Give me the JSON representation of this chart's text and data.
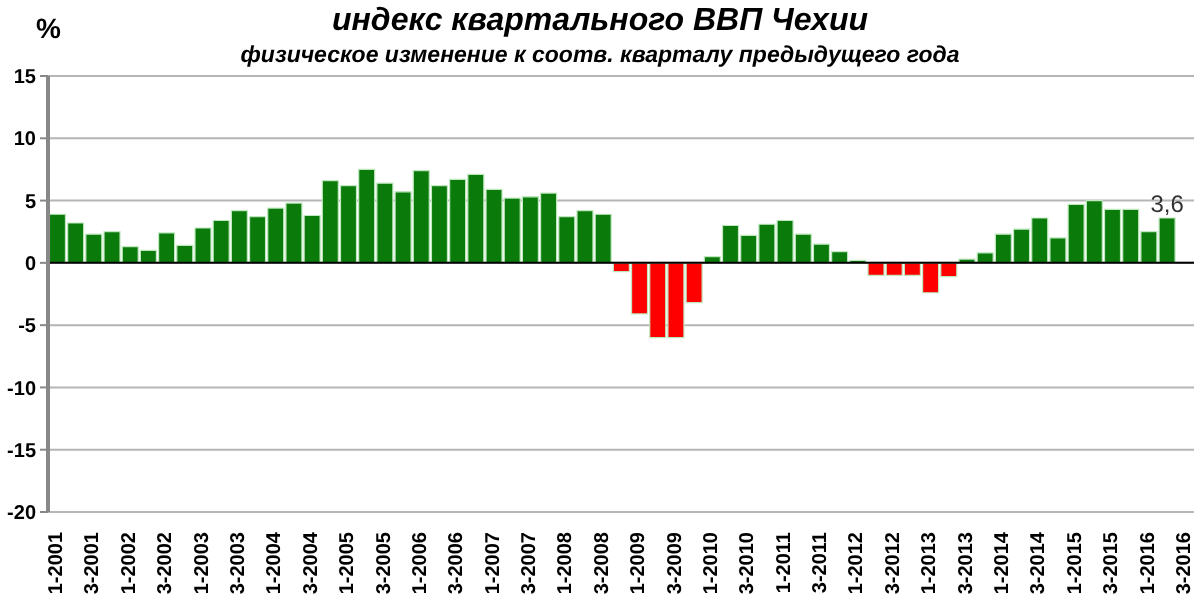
{
  "chart_data": {
    "type": "bar",
    "title": "индекс квартального ВВП Чехии",
    "subtitle": "физическое изменение к соотв. кварталу  предыдущего года",
    "ylabel": "%",
    "categories": [
      "1-2001",
      null,
      "3-2001",
      null,
      "1-2002",
      null,
      "3-2002",
      null,
      "1-2003",
      null,
      "3-2003",
      null,
      "1-2004",
      null,
      "3-2004",
      null,
      "1-2005",
      null,
      "3-2005",
      null,
      "1-2006",
      null,
      "3-2006",
      null,
      "1-2007",
      null,
      "3-2007",
      null,
      "1-2008",
      null,
      "3-2008",
      null,
      "1-2009",
      null,
      "3-2009",
      null,
      "1-2010",
      null,
      "3-2010",
      null,
      "1-2011",
      null,
      "3-2011",
      null,
      "1-2012",
      null,
      "3-2012",
      null,
      "1-2013",
      null,
      "3-2013",
      null,
      "1-2014",
      null,
      "3-2014",
      null,
      "1-2015",
      null,
      "3-2015",
      null,
      "1-2016",
      null,
      "3-2016"
    ],
    "values": [
      3.9,
      3.2,
      2.3,
      2.5,
      1.3,
      1.0,
      2.4,
      1.4,
      2.8,
      3.4,
      4.2,
      3.7,
      4.4,
      4.8,
      3.8,
      6.6,
      6.2,
      7.5,
      6.4,
      5.7,
      7.4,
      6.2,
      6.7,
      7.1,
      5.9,
      5.2,
      5.3,
      5.6,
      3.7,
      4.2,
      3.9,
      -0.7,
      -4.1,
      -6.0,
      -6.0,
      -3.2,
      0.5,
      3.0,
      2.2,
      3.1,
      3.4,
      2.3,
      1.5,
      0.9,
      0.2,
      -1.0,
      -1.0,
      -1.0,
      -2.4,
      -1.1,
      0.3,
      0.8,
      2.3,
      2.7,
      3.6,
      2.0,
      4.7,
      5.0,
      4.3,
      4.3,
      2.5,
      3.6,
      null
    ],
    "colors": [
      "#0a7a0a",
      "#0a7a0a",
      "#0a7a0a",
      "#0a7a0a",
      "#0a7a0a",
      "#0a7a0a",
      "#0a7a0a",
      "#0a7a0a",
      "#0a7a0a",
      "#0a7a0a",
      "#0a7a0a",
      "#0a7a0a",
      "#0a7a0a",
      "#0a7a0a",
      "#0a7a0a",
      "#0a7a0a",
      "#0a7a0a",
      "#0a7a0a",
      "#0a7a0a",
      "#0a7a0a",
      "#0a7a0a",
      "#0a7a0a",
      "#0a7a0a",
      "#0a7a0a",
      "#0a7a0a",
      "#0a7a0a",
      "#0a7a0a",
      "#0a7a0a",
      "#0a7a0a",
      "#0a7a0a",
      "#0a7a0a",
      "#ff0000",
      "#ff0000",
      "#ff0000",
      "#ff0000",
      "#ff0000",
      "#0a7a0a",
      "#0a7a0a",
      "#0a7a0a",
      "#0a7a0a",
      "#0a7a0a",
      "#0a7a0a",
      "#0a7a0a",
      "#0a7a0a",
      "#0a7a0a",
      "#ff0000",
      "#ff0000",
      "#ff0000",
      "#ff0000",
      "#ff0000",
      "#0a7a0a",
      "#0a7a0a",
      "#0a7a0a",
      "#0a7a0a",
      "#0a7a0a",
      "#0a7a0a",
      "#0a7a0a",
      "#0a7a0a",
      "#0a7a0a",
      "#0a7a0a",
      "#0a7a0a",
      "#0a7a0a",
      "#0a7a0a"
    ],
    "value_labels": [
      null,
      null,
      null,
      null,
      null,
      null,
      null,
      null,
      null,
      null,
      null,
      null,
      null,
      null,
      null,
      null,
      null,
      null,
      null,
      null,
      null,
      null,
      null,
      null,
      null,
      null,
      null,
      null,
      null,
      null,
      null,
      null,
      null,
      null,
      null,
      null,
      null,
      null,
      null,
      null,
      null,
      null,
      null,
      null,
      null,
      null,
      null,
      null,
      null,
      null,
      null,
      null,
      null,
      null,
      null,
      null,
      null,
      null,
      null,
      null,
      null,
      "3,6",
      null
    ],
    "ylim": [
      -20,
      15
    ],
    "yticks": [
      -20,
      -15,
      -10,
      -5,
      0,
      5,
      10,
      15
    ],
    "grid": "y"
  }
}
